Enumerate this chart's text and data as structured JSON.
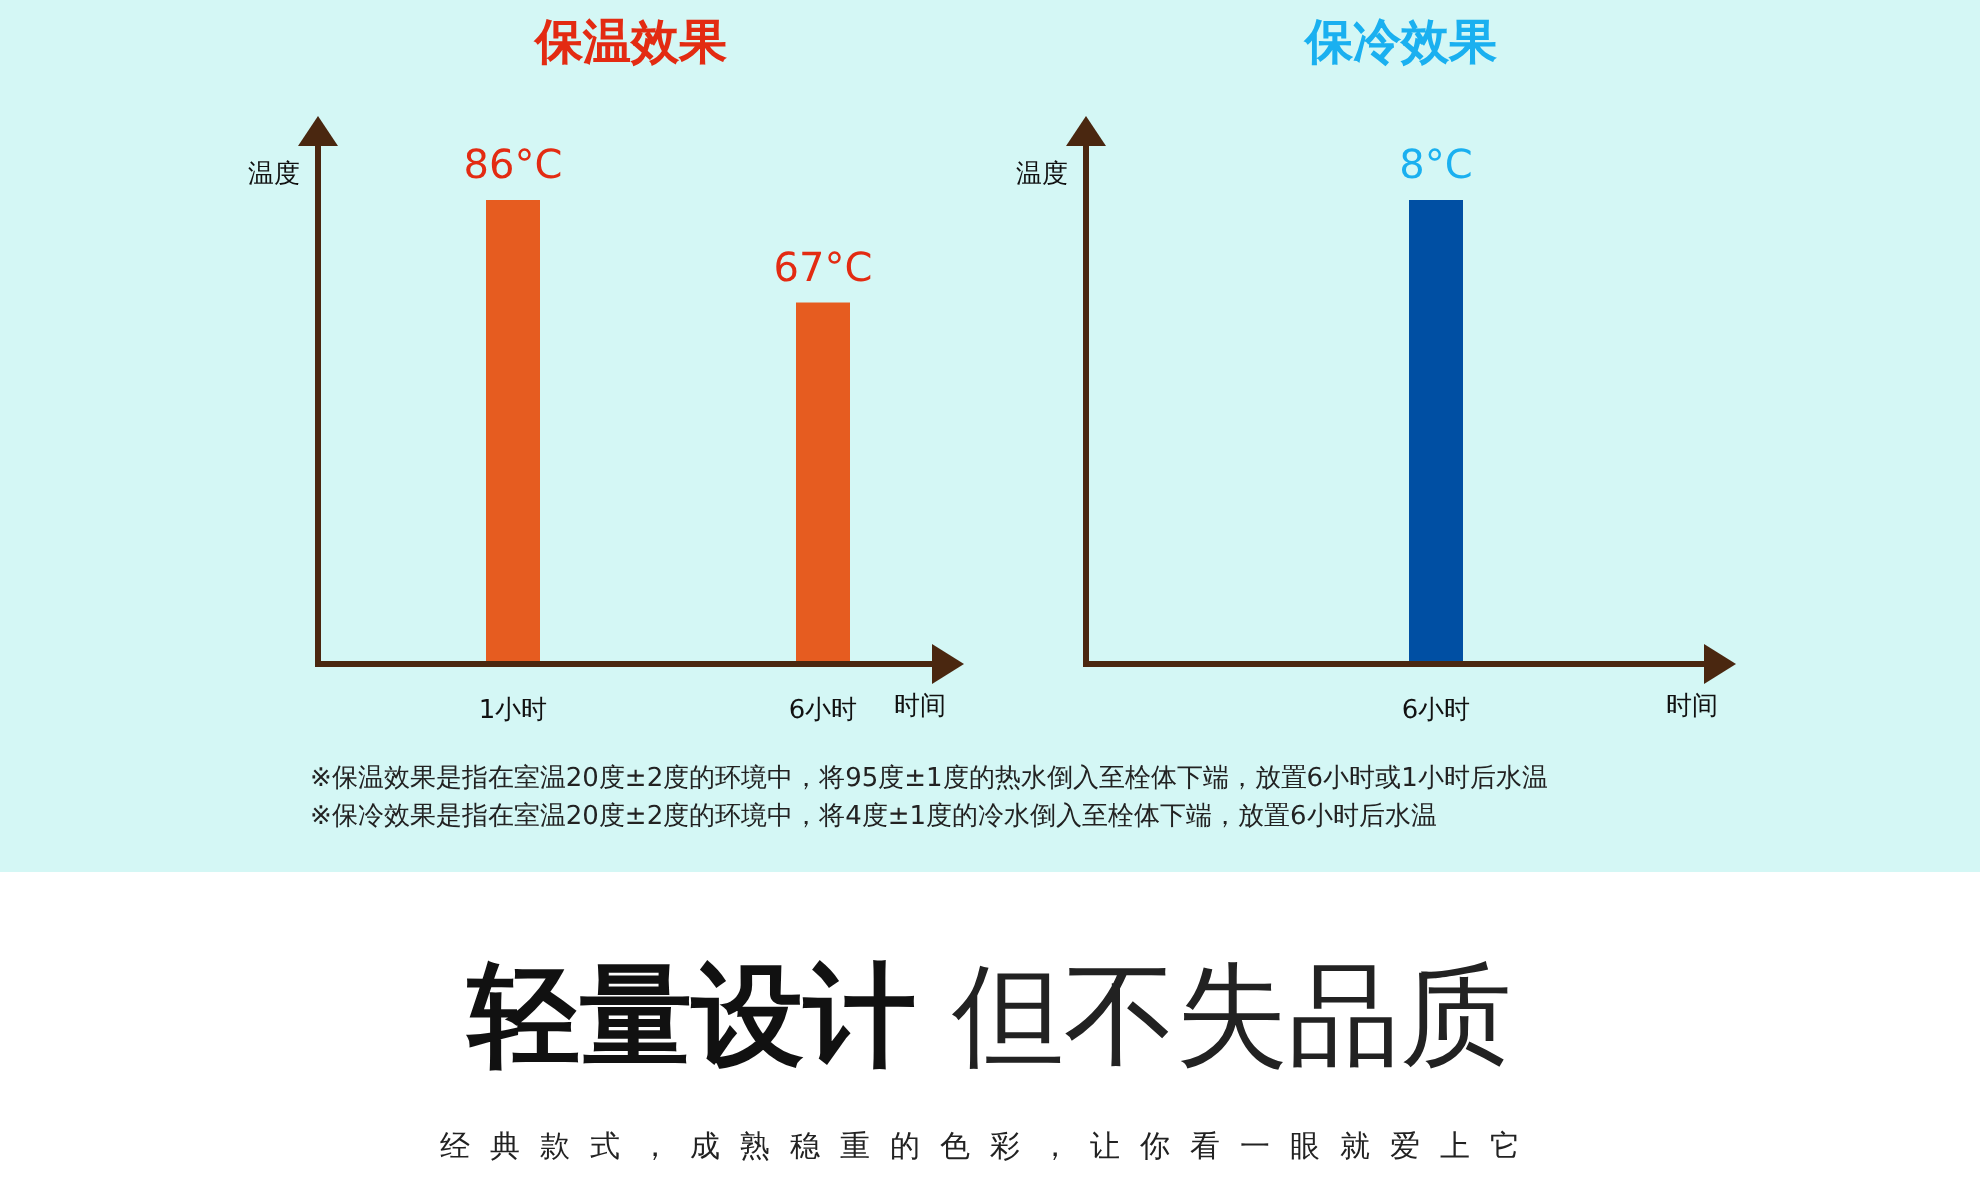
{
  "chart_data": [
    {
      "type": "bar",
      "title": "保温效果",
      "ylabel": "温度",
      "xlabel": "时间",
      "categories": [
        "1小时",
        "6小时"
      ],
      "values": [
        86,
        67
      ],
      "value_labels": [
        "86°C",
        "67°C"
      ],
      "color": "#e65c20"
    },
    {
      "type": "bar",
      "title": "保冷效果",
      "ylabel": "温度",
      "xlabel": "时间",
      "categories": [
        "6小时"
      ],
      "values": [
        8
      ],
      "value_labels": [
        "8°C"
      ],
      "color": "#004fa3"
    },
    {
      "type": "other",
      "title": "**轻量设计** 但不失品质",
      "subtitle": "经典款式，成熟稳重的色彩，让你看一眼就爱上它",
      "annotations": [
        "※保温效果是指在室温20度±2度的环境中，将95度±1度的热水倒入至栓体下端，放置6小时或1小时后水温",
        "※保冷效果是指在室温20度±2度的环境中，将4度±1度的冷水倒入至栓体下端，放置6小时后水温"
      ]
    }
  ]
}
